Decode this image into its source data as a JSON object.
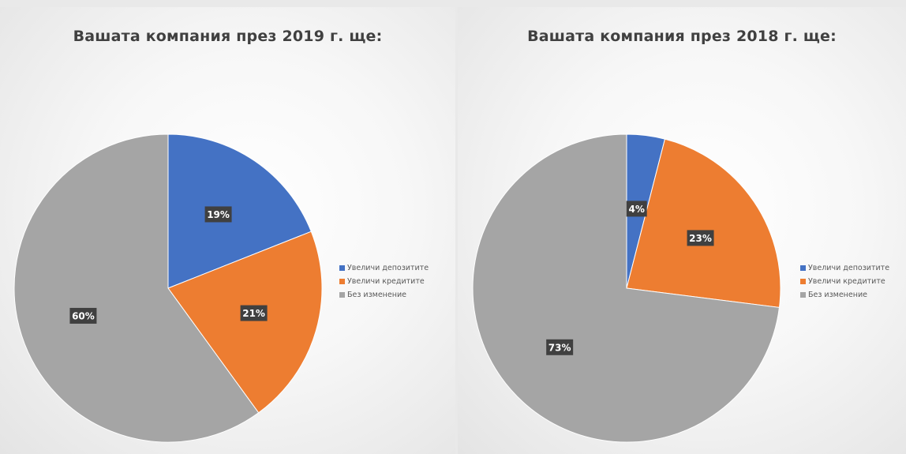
{
  "chart_data": [
    {
      "type": "pie",
      "title": "Вашата компания през 2019 г. ще:",
      "categories": [
        "Увеличи депозитите",
        "Увеличи кредитите",
        "Без изменение"
      ],
      "values": [
        19,
        21,
        60
      ],
      "data_labels": [
        "19%",
        "21%",
        "60%"
      ],
      "colors": [
        "#4472c4",
        "#ed7d31",
        "#a5a5a5"
      ],
      "legend_position": "right"
    },
    {
      "type": "pie",
      "title": "Вашата компания през 2018 г. ще:",
      "categories": [
        "Увеличи депозитите",
        "Увеличи кредитите",
        "Без изменение"
      ],
      "values": [
        4,
        23,
        73
      ],
      "data_labels": [
        "4%",
        "23%",
        "73%"
      ],
      "colors": [
        "#4472c4",
        "#ed7d31",
        "#a5a5a5"
      ],
      "legend_position": "right"
    }
  ]
}
